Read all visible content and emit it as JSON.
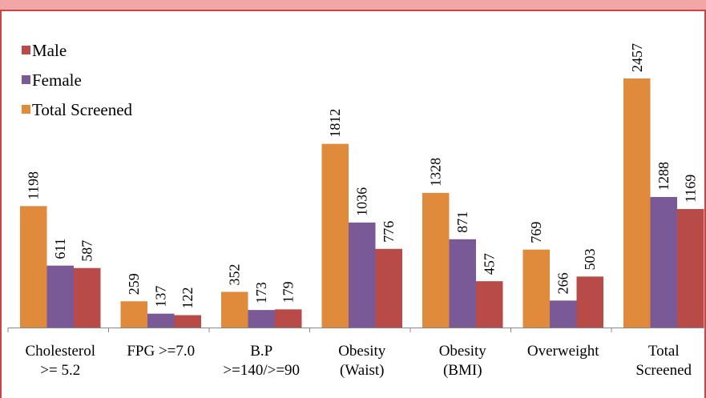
{
  "chart_data": {
    "type": "bar",
    "title": "",
    "xlabel": "",
    "ylabel": "",
    "ylim": [
      0,
      2650
    ],
    "grid": false,
    "legend_position": "top-left",
    "categories": [
      [
        "Cholesterol",
        ">= 5.2"
      ],
      [
        "FPG >=7.0"
      ],
      [
        "B.P",
        ">=140/>=90"
      ],
      [
        "Obesity",
        "(Waist)"
      ],
      [
        "Obesity",
        "(BMI)"
      ],
      [
        "Overweight"
      ],
      [
        "Total",
        "Screened"
      ]
    ],
    "series": [
      {
        "name": "Total Screened",
        "color": "#e08a3c",
        "values": [
          1198,
          259,
          352,
          1812,
          1328,
          769,
          2457
        ]
      },
      {
        "name": "Female",
        "color": "#7a5a96",
        "values": [
          611,
          137,
          173,
          1036,
          871,
          266,
          1288
        ]
      },
      {
        "name": "Male",
        "color": "#b84a47",
        "values": [
          587,
          122,
          179,
          776,
          457,
          503,
          1169
        ]
      }
    ],
    "legend_order": [
      "Male",
      "Female",
      "Total Screened"
    ]
  }
}
